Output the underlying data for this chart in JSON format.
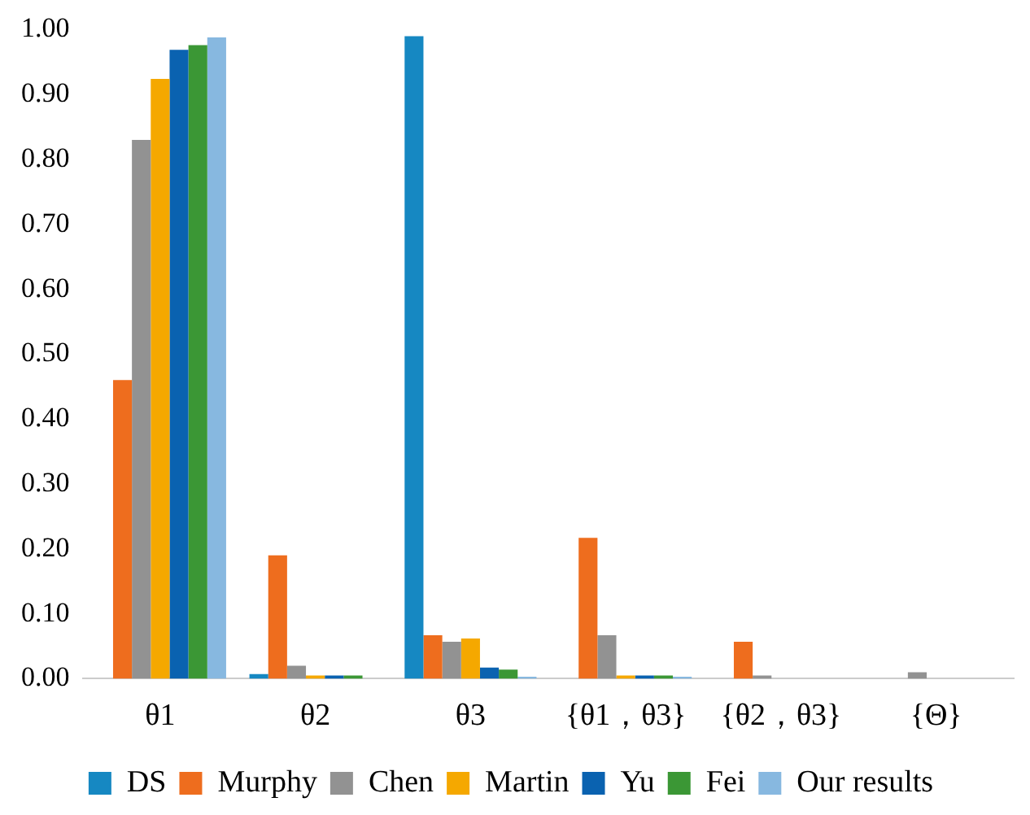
{
  "chart_data": {
    "type": "bar",
    "categories": [
      "θ1",
      "θ2",
      "θ3",
      "{θ1，θ3}",
      "{θ2，θ3}",
      "{Θ}"
    ],
    "series": [
      {
        "name": "DS",
        "color": "#1688c2",
        "values": [
          0,
          0.007,
          0.99,
          0,
          0,
          0
        ]
      },
      {
        "name": "Murphy",
        "color": "#ee6d1e",
        "values": [
          0.46,
          0.19,
          0.067,
          0.217,
          0.057,
          0
        ]
      },
      {
        "name": "Chen",
        "color": "#929292",
        "values": [
          0.83,
          0.02,
          0.057,
          0.067,
          0.005,
          0.01
        ]
      },
      {
        "name": "Martin",
        "color": "#f5a800",
        "values": [
          0.924,
          0.005,
          0.062,
          0.005,
          0,
          0
        ]
      },
      {
        "name": "Yu",
        "color": "#0a62b0",
        "values": [
          0.969,
          0.005,
          0.017,
          0.005,
          0,
          0
        ]
      },
      {
        "name": "Fei",
        "color": "#3b9735",
        "values": [
          0.976,
          0.005,
          0.014,
          0.005,
          0,
          0
        ]
      },
      {
        "name": "Our results",
        "color": "#87b8e0",
        "values": [
          0.988,
          0,
          0.003,
          0.003,
          0,
          0
        ]
      }
    ],
    "ylim": [
      0,
      1
    ],
    "yticks": [
      {
        "value": 0,
        "label": "0.00"
      },
      {
        "value": 0.1,
        "label": "0.10"
      },
      {
        "value": 0.2,
        "label": "0.20"
      },
      {
        "value": 0.3,
        "label": "0.30"
      },
      {
        "value": 0.4,
        "label": "0.40"
      },
      {
        "value": 0.5,
        "label": "0.50"
      },
      {
        "value": 0.6,
        "label": "0.60"
      },
      {
        "value": 0.7,
        "label": "0.70"
      },
      {
        "value": 0.8,
        "label": "0.80"
      },
      {
        "value": 0.9,
        "label": "0.90"
      },
      {
        "value": 1,
        "label": "1.00"
      }
    ],
    "grid": false,
    "legend": "bottom"
  }
}
